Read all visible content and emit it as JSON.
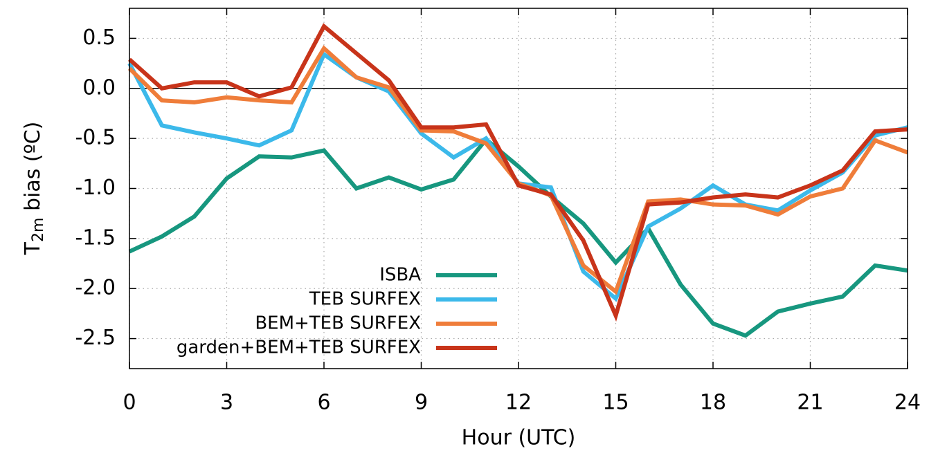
{
  "chart_data": {
    "type": "line",
    "xlabel": "Hour (UTC)",
    "ylabel_parts": [
      "T",
      "2m",
      " bias (ºC)"
    ],
    "x": [
      0,
      1,
      2,
      3,
      4,
      5,
      6,
      7,
      8,
      9,
      10,
      11,
      12,
      13,
      14,
      15,
      16,
      17,
      18,
      19,
      20,
      21,
      22,
      23,
      24
    ],
    "xlim": [
      0,
      24
    ],
    "xticks": [
      0,
      3,
      6,
      9,
      12,
      15,
      18,
      21,
      24
    ],
    "ylim": [
      -2.8,
      0.8
    ],
    "yticks": [
      0.5,
      {
        "value": 0,
        "label": "0.0"
      },
      -0.5,
      {
        "value": -1,
        "label": "-1.0"
      },
      -1.5,
      {
        "value": -2,
        "label": "-2.0"
      },
      -2.5
    ],
    "grid": true,
    "zero_line": true,
    "legend": "lower-center",
    "series": [
      {
        "name": "ISBA",
        "color": "#17977f",
        "values": [
          -1.63,
          -1.48,
          -1.28,
          -0.9,
          -0.68,
          -0.69,
          -0.62,
          -1.0,
          -0.89,
          -1.01,
          -0.91,
          -0.51,
          -0.78,
          -1.08,
          -1.35,
          -1.74,
          -1.4,
          -1.96,
          -2.35,
          -2.47,
          -2.23,
          -2.15,
          -2.08,
          -1.77,
          -1.82
        ]
      },
      {
        "name": "TEB SURFEX",
        "color": "#3cb9ea",
        "values": [
          0.25,
          -0.37,
          -0.44,
          -0.5,
          -0.57,
          -0.42,
          0.34,
          0.11,
          -0.03,
          -0.45,
          -0.69,
          -0.5,
          -0.95,
          -0.99,
          -1.83,
          -2.1,
          -1.38,
          -1.2,
          -0.97,
          -1.16,
          -1.22,
          -1.02,
          -0.84,
          -0.47,
          -0.39
        ]
      },
      {
        "name": "BEM+TEB SURFEX",
        "color": "#ef7d3a",
        "values": [
          0.2,
          -0.12,
          -0.14,
          -0.09,
          -0.12,
          -0.14,
          0.4,
          0.11,
          0.01,
          -0.42,
          -0.43,
          -0.55,
          -0.95,
          -1.07,
          -1.77,
          -2.03,
          -1.13,
          -1.11,
          -1.16,
          -1.17,
          -1.26,
          -1.08,
          -1.0,
          -0.52,
          -0.64
        ]
      },
      {
        "name": "garden+BEM+TEB SURFEX",
        "color": "#c8341a",
        "values": [
          0.29,
          0.0,
          0.06,
          0.06,
          -0.08,
          0.01,
          0.62,
          0.35,
          0.08,
          -0.39,
          -0.39,
          -0.36,
          -0.97,
          -1.06,
          -1.52,
          -2.27,
          -1.16,
          -1.14,
          -1.09,
          -1.06,
          -1.09,
          -0.97,
          -0.82,
          -0.43,
          -0.41
        ]
      }
    ]
  }
}
